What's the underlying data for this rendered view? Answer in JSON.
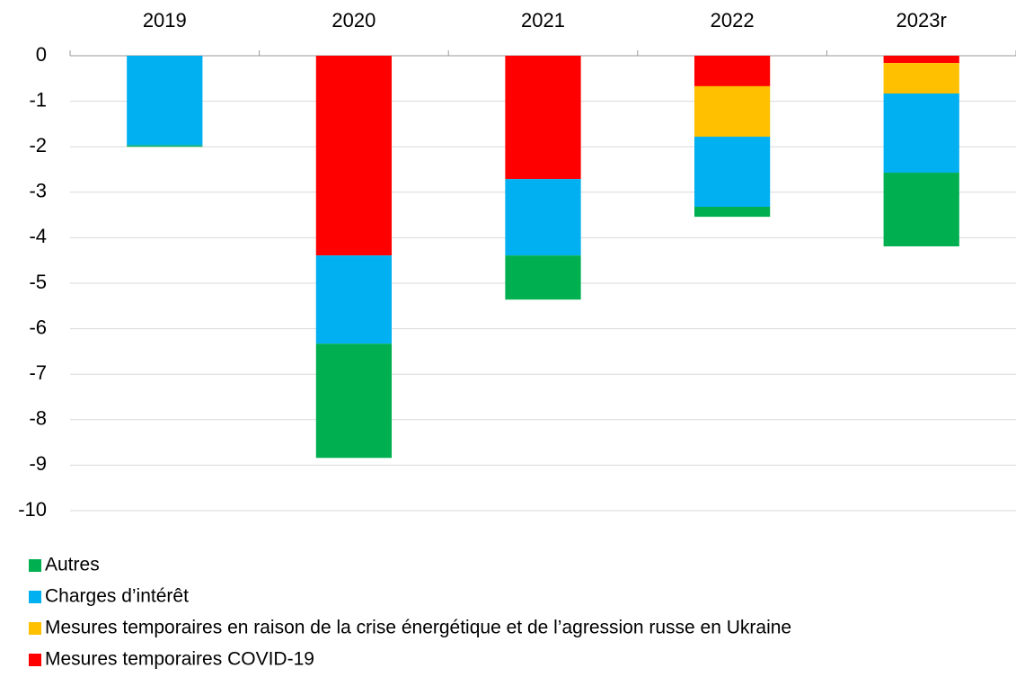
{
  "chart_data": {
    "type": "stacked_bar",
    "categories": [
      "2019",
      "2020",
      "2021",
      "2022",
      "2023r"
    ],
    "series": [
      {
        "name": "Autres",
        "color": "#00b050",
        "values": [
          -0.03,
          -2.51,
          -0.97,
          -0.22,
          -1.62
        ]
      },
      {
        "name": "Charges d’intérêt",
        "color": "#00b0f0",
        "values": [
          -1.97,
          -1.94,
          -1.68,
          -1.54,
          -1.74
        ]
      },
      {
        "name": "Mesures temporaires en raison de la crise énergétique et de l’agression russe en Ukraine",
        "color": "#ffc000",
        "values": [
          0,
          0,
          0,
          -1.11,
          -0.67
        ]
      },
      {
        "name": "Mesures temporaires COVID-19",
        "color": "#ff0000",
        "values": [
          0,
          -4.39,
          -2.71,
          -0.67,
          -0.16
        ]
      }
    ],
    "ylim": [
      -10,
      0
    ],
    "yticks": [
      0,
      -1,
      -2,
      -3,
      -4,
      -5,
      -6,
      -7,
      -8,
      -9,
      -10
    ],
    "grid": true
  }
}
